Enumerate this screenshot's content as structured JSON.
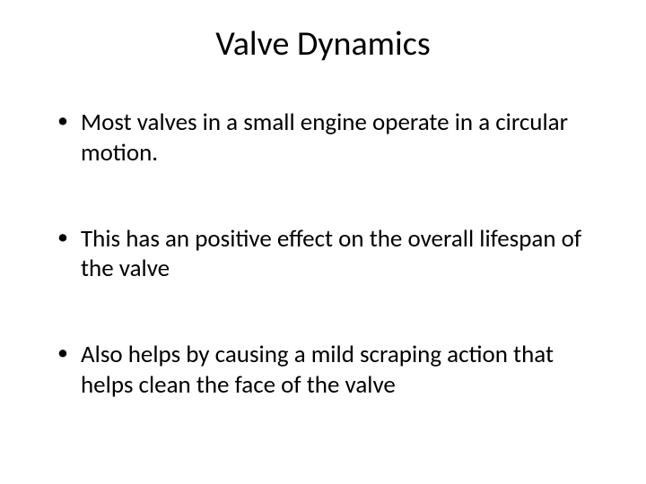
{
  "slide": {
    "title": "Valve Dynamics",
    "title_fontsize": 38,
    "title_align": "center",
    "bullets": [
      "Most valves in a small engine operate in a circular motion.",
      "This has an positive effect on the overall lifespan of the valve",
      "Also helps by causing a mild scraping action that helps clean the face of the valve"
    ],
    "bullet_fontsize": 27,
    "bullet_color": "#000000",
    "background_color": "#ffffff",
    "font_family": "Calibri"
  }
}
